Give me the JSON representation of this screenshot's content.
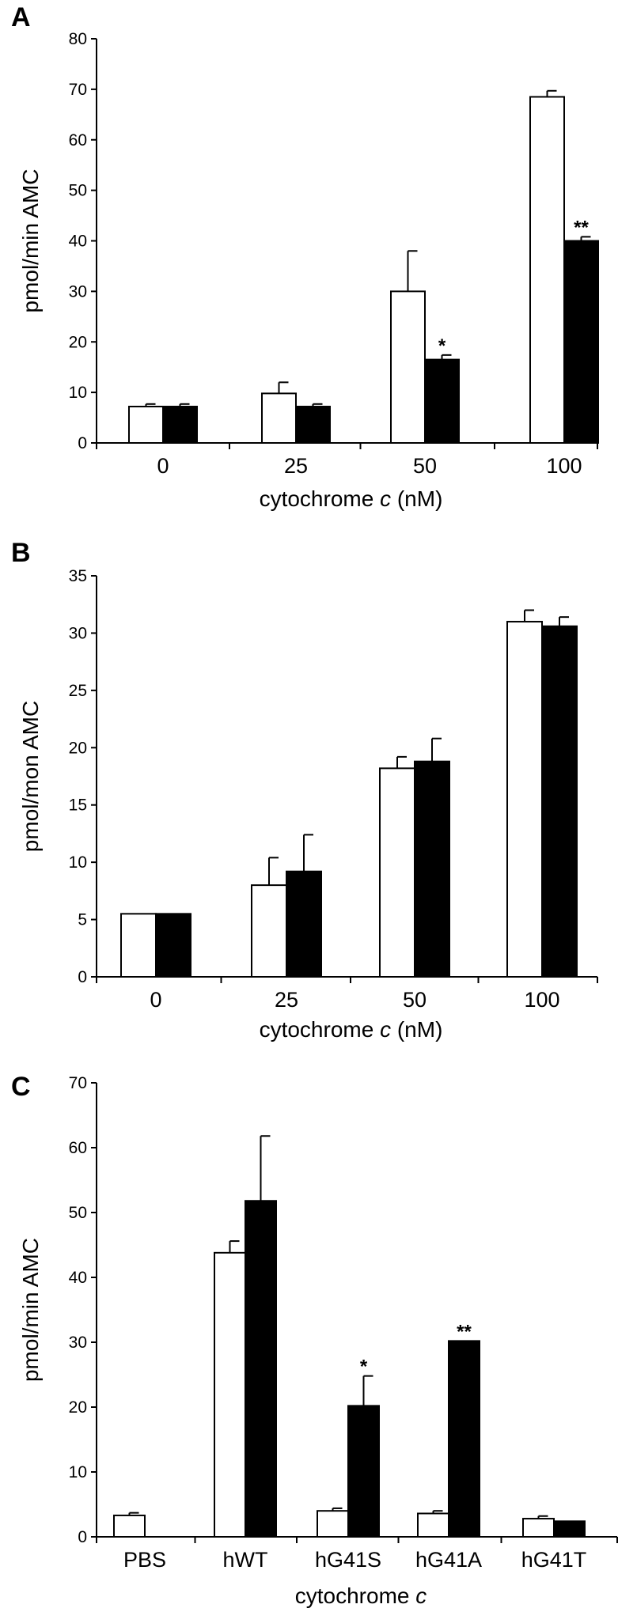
{
  "chart_data": [
    {
      "panel": "A",
      "type": "bar",
      "title": "",
      "xlabel": "cytochrome c (nM)",
      "xlabel_main": "cytochrome ",
      "xlabel_italic": "c",
      "xlabel_tail": " (nM)",
      "ylabel": "pmol/min AMC",
      "ylim": [
        0,
        80
      ],
      "yticks": [
        0,
        10,
        20,
        30,
        40,
        50,
        60,
        70,
        80
      ],
      "categories": [
        "0",
        "25",
        "50",
        "100"
      ],
      "series": [
        {
          "fill": "#ffffff",
          "values": [
            7.2,
            9.8,
            30,
            68.5
          ],
          "errors": [
            0.5,
            2.2,
            8.0,
            1.2
          ],
          "labels": [
            "",
            "",
            "",
            ""
          ]
        },
        {
          "fill": "#000000",
          "values": [
            7.2,
            7.2,
            16.5,
            40
          ],
          "errors": [
            0.5,
            0.5,
            0.9,
            0.8
          ],
          "labels": [
            "",
            "",
            "*",
            "**"
          ]
        }
      ],
      "grid": false,
      "legend": "none"
    },
    {
      "panel": "B",
      "type": "bar",
      "title": "",
      "xlabel": "cytochrome c (nM)",
      "xlabel_main": "cytochrome ",
      "xlabel_italic": "c",
      "xlabel_tail": " (nM)",
      "ylabel": "pmol/mon AMC",
      "ylim": [
        0,
        35
      ],
      "yticks": [
        0,
        5,
        10,
        15,
        20,
        25,
        30,
        35
      ],
      "categories": [
        "0",
        "25",
        "50",
        "100"
      ],
      "series": [
        {
          "fill": "#ffffff",
          "values": [
            5.5,
            8.0,
            18.2,
            31
          ],
          "errors": [
            0,
            2.4,
            1.0,
            1.0
          ],
          "labels": [
            "",
            "",
            "",
            ""
          ]
        },
        {
          "fill": "#000000",
          "values": [
            5.5,
            9.2,
            18.8,
            30.6
          ],
          "errors": [
            0,
            3.2,
            2.0,
            0.8
          ],
          "labels": [
            "",
            "",
            "",
            ""
          ]
        }
      ],
      "grid": false,
      "legend": "none"
    },
    {
      "panel": "C",
      "type": "bar",
      "title": "",
      "xlabel": "cytochrome c",
      "xlabel_main": "cytochrome ",
      "xlabel_italic": "c",
      "xlabel_tail": "",
      "ylabel": "pmol/min AMC",
      "ylim": [
        0,
        70
      ],
      "yticks": [
        0,
        10,
        20,
        30,
        40,
        50,
        60,
        70
      ],
      "categories": [
        "PBS",
        "hWT",
        "hG41S",
        "hG41A",
        "hG41T"
      ],
      "series": [
        {
          "fill": "#ffffff",
          "values": [
            3.3,
            43.8,
            4.0,
            3.6,
            2.8
          ],
          "errors": [
            0.4,
            1.8,
            0.4,
            0.4,
            0.4
          ],
          "labels": [
            "",
            "",
            "",
            "",
            ""
          ]
        },
        {
          "fill": "#000000",
          "values": [
            0,
            51.8,
            20.2,
            30.2,
            2.4
          ],
          "errors": [
            0,
            10,
            4.6,
            0,
            0
          ],
          "labels": [
            "",
            "",
            "*",
            "**",
            ""
          ]
        }
      ],
      "grid": false,
      "legend": "none"
    }
  ]
}
